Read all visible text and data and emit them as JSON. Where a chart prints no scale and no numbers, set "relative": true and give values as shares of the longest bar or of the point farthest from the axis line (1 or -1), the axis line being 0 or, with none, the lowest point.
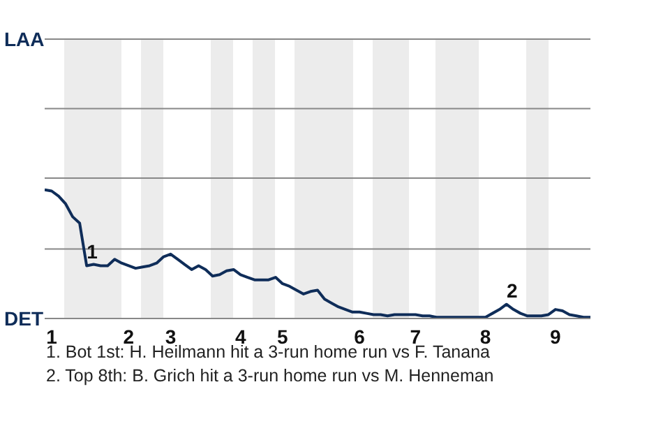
{
  "chart_data": {
    "type": "line",
    "relative": true,
    "categories": [
      null,
      "1",
      null,
      null,
      null,
      null,
      null,
      null,
      null,
      null,
      null,
      null,
      "2",
      null,
      null,
      null,
      null,
      null,
      "3",
      null,
      null,
      null,
      null,
      null,
      null,
      null,
      null,
      null,
      "4",
      null,
      null,
      null,
      null,
      null,
      "5",
      null,
      null,
      null,
      null,
      null,
      null,
      null,
      null,
      null,
      null,
      "6",
      null,
      null,
      null,
      null,
      null,
      null,
      null,
      "7",
      null,
      null,
      null,
      null,
      null,
      null,
      null,
      null,
      null,
      "8",
      null,
      null,
      null,
      null,
      null,
      null,
      null,
      null,
      null,
      "9",
      null,
      null,
      null,
      null,
      null
    ],
    "series": [
      {
        "color": "#0f2d59",
        "values": [
          1,
          0.99,
          0.95,
          0.89,
          0.79,
          0.74,
          0.41,
          0.42,
          0.41,
          0.41,
          0.46,
          0.43,
          0.41,
          0.39,
          0.4,
          0.41,
          0.43,
          0.48,
          0.5,
          0.46,
          0.42,
          0.38,
          0.41,
          0.38,
          0.33,
          0.34,
          0.37,
          0.38,
          0.34,
          0.32,
          0.3,
          0.3,
          0.3,
          0.32,
          0.27,
          0.25,
          0.22,
          0.19,
          0.21,
          0.22,
          0.15,
          0.12,
          0.09,
          0.07,
          0.05,
          0.05,
          0.04,
          0.03,
          0.03,
          0.02,
          0.03,
          0.03,
          0.03,
          0.03,
          0.02,
          0.02,
          0.01,
          0.01,
          0.01,
          0.01,
          0.01,
          0.01,
          0.01,
          0.01,
          0.04,
          0.07,
          0.11,
          0.07,
          0.04,
          0.02,
          0.02,
          0.02,
          0.03,
          0.07,
          0.06,
          0.03,
          0.02,
          0.01,
          0.01
        ]
      }
    ],
    "ref_lines": [
      {
        "axis": "y",
        "value": 0.54,
        "color": "#888888"
      },
      {
        "axis": "y",
        "value": 1.09,
        "color": "#888888"
      },
      {
        "axis": "y",
        "value": 1.63,
        "color": "#888888"
      },
      {
        "axis": "y",
        "value": 2.17,
        "color": "#888888"
      }
    ],
    "annotations": [
      {
        "text": "1",
        "y": 0.41
      },
      {
        "text": "2",
        "y": 0.11
      },
      "LAA",
      "DET",
      "1. Bot 1st: H. Heilmann hit a 3-run home run vs F. Tanana",
      "2. Top 8th: B. Grich hit a 3-run home run vs M. Henneman"
    ],
    "marker": "none",
    "line_style": "solid"
  }
}
